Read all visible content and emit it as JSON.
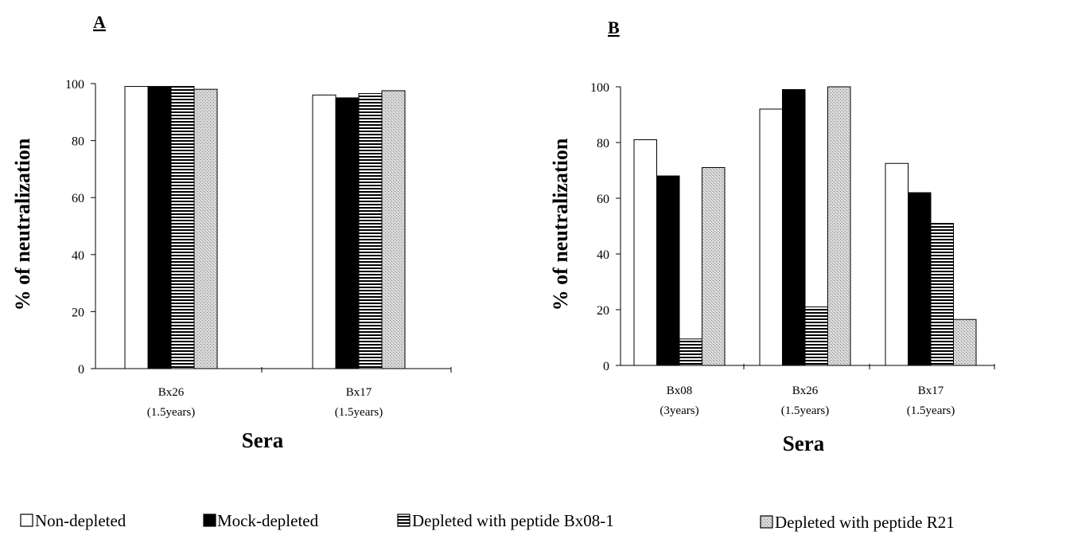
{
  "chart_data": [
    {
      "panel": "A",
      "type": "bar",
      "xlabel": "Sera",
      "ylabel": "% of neutralization",
      "ylim": [
        0,
        100
      ],
      "yticks": [
        0,
        20,
        40,
        60,
        80,
        100
      ],
      "categories": [
        {
          "name": "Bx26",
          "sub": "(1.5years)"
        },
        {
          "name": "Bx17",
          "sub": "(1.5years)"
        }
      ],
      "series": [
        {
          "name": "Non-depleted",
          "values": [
            99,
            96
          ]
        },
        {
          "name": "Mock-depleted",
          "values": [
            99,
            95
          ]
        },
        {
          "name": "Depleted with peptide Bx08-1",
          "values": [
            99,
            96.5
          ]
        },
        {
          "name": "Depleted with peptide R21",
          "values": [
            98,
            97.5
          ]
        }
      ]
    },
    {
      "panel": "B",
      "type": "bar",
      "xlabel": "Sera",
      "ylabel": "% of neutralization",
      "ylim": [
        0,
        100
      ],
      "yticks": [
        0,
        20,
        40,
        60,
        80,
        100
      ],
      "categories": [
        {
          "name": "Bx08",
          "sub": "(3years)"
        },
        {
          "name": "Bx26",
          "sub": "(1.5years)"
        },
        {
          "name": "Bx17",
          "sub": "(1.5years)"
        }
      ],
      "series": [
        {
          "name": "Non-depleted",
          "values": [
            81,
            92,
            72.5
          ]
        },
        {
          "name": "Mock-depleted",
          "values": [
            68,
            99,
            62
          ]
        },
        {
          "name": "Depleted with peptide Bx08-1",
          "values": [
            9.5,
            21,
            51
          ]
        },
        {
          "name": "Depleted with peptide R21",
          "values": [
            71,
            100,
            16.5
          ]
        }
      ]
    }
  ],
  "legend": [
    {
      "label": "Non-depleted",
      "pattern": "white"
    },
    {
      "label": "Mock-depleted",
      "pattern": "black"
    },
    {
      "label": "Depleted with peptide Bx08-1",
      "pattern": "hstripes"
    },
    {
      "label": "Depleted with peptide R21",
      "pattern": "stipple"
    }
  ]
}
